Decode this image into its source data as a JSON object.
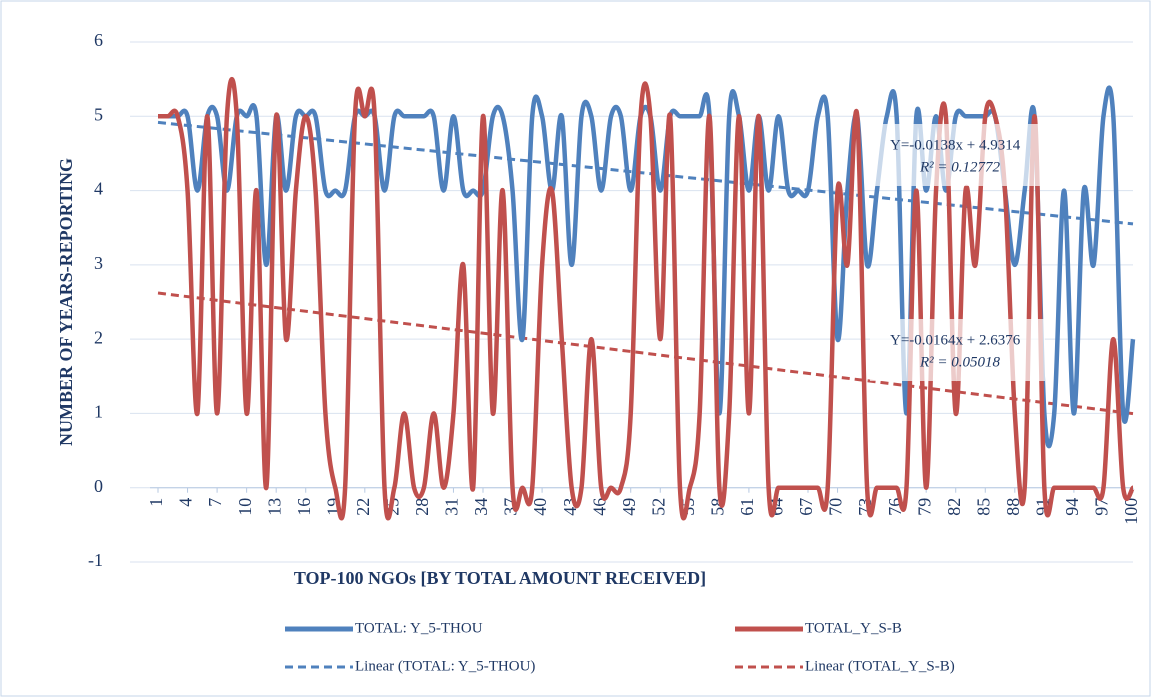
{
  "chart_data": {
    "type": "line",
    "x_label": "TOP-100 NGOs [BY TOTAL AMOUNT RECEIVED]",
    "y_label": "NUMBER OF YEARS-REPORTING",
    "x": [
      1,
      2,
      3,
      4,
      5,
      6,
      7,
      8,
      9,
      10,
      11,
      12,
      13,
      14,
      15,
      16,
      17,
      18,
      19,
      20,
      21,
      22,
      23,
      24,
      25,
      26,
      27,
      28,
      29,
      30,
      31,
      32,
      33,
      34,
      35,
      36,
      37,
      38,
      39,
      40,
      41,
      42,
      43,
      44,
      45,
      46,
      47,
      48,
      49,
      50,
      51,
      52,
      53,
      54,
      55,
      56,
      57,
      58,
      59,
      60,
      61,
      62,
      63,
      64,
      65,
      66,
      67,
      68,
      69,
      70,
      71,
      72,
      73,
      74,
      75,
      76,
      77,
      78,
      79,
      80,
      81,
      82,
      83,
      84,
      85,
      86,
      87,
      88,
      89,
      90,
      91,
      92,
      93,
      94,
      95,
      96,
      97,
      98,
      99,
      100
    ],
    "xlim": [
      1,
      100
    ],
    "xticks": [
      1,
      4,
      7,
      10,
      13,
      16,
      19,
      22,
      25,
      28,
      31,
      34,
      37,
      40,
      43,
      46,
      49,
      52,
      55,
      58,
      61,
      64,
      67,
      70,
      73,
      76,
      79,
      82,
      85,
      88,
      91,
      94,
      97,
      100
    ],
    "ylim": [
      -1,
      6
    ],
    "yticks": [
      -1,
      0,
      1,
      2,
      3,
      4,
      5,
      6
    ],
    "grid": true,
    "smooth": true,
    "legend": "bottom",
    "series": [
      {
        "name": "TOTAL: Y_5-THOU",
        "color": "#4f81bd",
        "values": [
          5,
          5,
          5,
          5,
          4,
          5,
          5,
          4,
          5,
          5,
          5,
          3,
          5,
          4,
          5,
          5,
          5,
          4,
          4,
          4,
          5,
          5,
          5,
          4,
          5,
          5,
          5,
          5,
          5,
          4,
          5,
          4,
          4,
          4,
          5,
          5,
          4,
          2,
          5,
          5,
          4,
          5,
          3,
          5,
          5,
          4,
          5,
          5,
          4,
          5,
          5,
          4,
          5,
          5,
          5,
          5,
          5,
          1,
          5,
          5,
          4,
          5,
          4,
          5,
          4,
          4,
          4,
          5,
          5,
          2,
          4,
          5,
          3,
          4,
          5,
          5,
          1,
          5,
          4,
          5,
          4,
          5,
          5,
          5,
          5,
          5,
          4,
          3,
          4,
          5,
          1,
          1,
          4,
          1,
          4,
          3,
          5,
          5,
          1,
          2
        ]
      },
      {
        "name": "TOTAL_Y_S-B",
        "color": "#c0504d",
        "values": [
          5,
          5,
          5,
          4,
          1,
          5,
          1,
          5,
          5,
          1,
          4,
          0,
          5,
          2,
          4,
          5,
          4,
          1,
          0,
          0,
          5,
          5,
          5,
          0,
          0,
          1,
          0,
          0,
          1,
          0,
          1,
          3,
          0,
          5,
          1,
          4,
          0,
          0,
          0,
          3,
          4,
          2,
          0,
          0,
          2,
          0,
          0,
          0,
          1,
          5,
          5,
          2,
          5,
          0,
          0,
          1,
          5,
          0,
          1,
          5,
          1,
          5,
          0,
          0,
          0,
          0,
          0,
          0,
          0,
          4,
          3,
          5,
          0,
          0,
          0,
          0,
          0,
          4,
          0,
          4,
          5,
          1,
          4,
          3,
          5,
          5,
          4,
          1,
          0,
          5,
          0,
          0,
          0,
          0,
          0,
          0,
          0,
          2,
          0,
          0
        ]
      }
    ],
    "trendlines": [
      {
        "name": "Linear (TOTAL: Y_5-THOU)",
        "color": "#4f81bd",
        "slope": -0.0138,
        "intercept": 4.9314,
        "equation": "Y=-0.0138x + 4.9314",
        "r2_label": "R² = 0.12772"
      },
      {
        "name": "Linear (TOTAL_Y_S-B)",
        "color": "#c0504d",
        "slope": -0.0164,
        "intercept": 2.6376,
        "equation": "Y=-0.0164x + 2.6376",
        "r2_label": "R² = 0.05018"
      }
    ]
  }
}
